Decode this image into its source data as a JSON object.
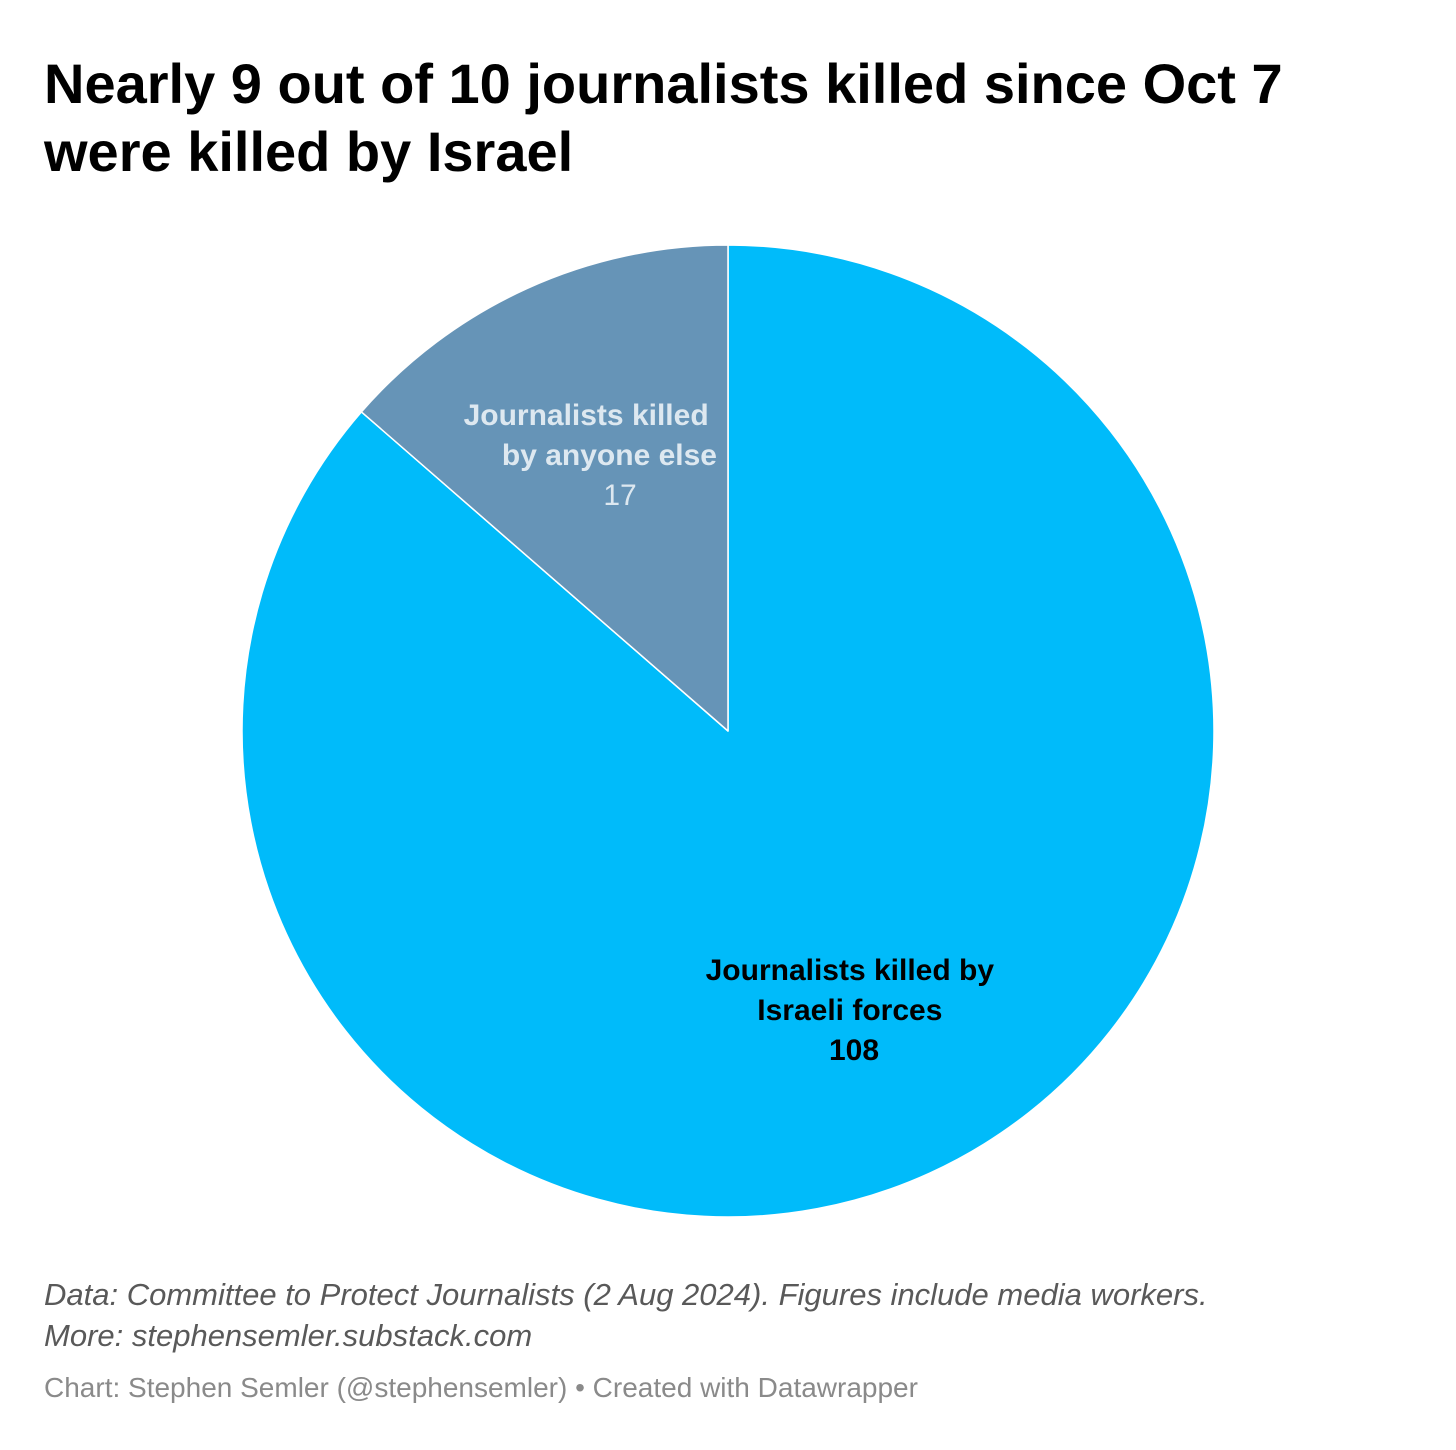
{
  "chart_data": {
    "type": "pie",
    "title": "Nearly 9 out of 10 journalists killed since Oct 7 were killed by Israel",
    "slices": [
      {
        "name": "Journalists killed by Israeli forces",
        "label_lines": [
          "Journalists killed by",
          "Israeli forces"
        ],
        "value": 108,
        "value_label": "108",
        "color": "#00bbfa",
        "label_color": "#000000"
      },
      {
        "name": "Journalists killed by anyone else",
        "label_lines": [
          "Journalists killed",
          "by anyone else"
        ],
        "value": 17,
        "value_label": "17",
        "color": "#6694b7",
        "label_color": "#dde8f0"
      }
    ],
    "start_angle_deg": 0,
    "direction": "clockwise",
    "legend": "none"
  },
  "notes": {
    "line1": "Data: Committee to Protect Journalists (2 Aug 2024). Figures include media workers.",
    "line2": "More: stephensemler.substack.com"
  },
  "credit": "Chart: Stephen Semler (@stephensemler) • Created with Datawrapper"
}
